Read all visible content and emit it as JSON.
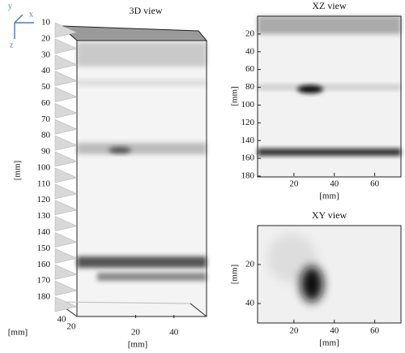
{
  "chart_data": [
    {
      "type": "image3d",
      "title": "3D view",
      "ylabel": "[mm]",
      "xlabel": "[mm]",
      "zlabel": "[mm]",
      "ylim": [
        10,
        180
      ],
      "yticks": [
        10,
        20,
        30,
        40,
        50,
        60,
        70,
        80,
        90,
        100,
        110,
        120,
        130,
        140,
        150,
        160,
        170,
        180
      ],
      "xlim": [
        0,
        57
      ],
      "xticks": [
        20,
        40
      ],
      "zlim": [
        0,
        50
      ],
      "zticks": [
        40,
        20
      ],
      "axis_icon_labels": [
        "y",
        "x",
        "z"
      ]
    },
    {
      "type": "image",
      "title": "XZ view",
      "xlabel": "[mm]",
      "ylabel": "[mm]",
      "xlim": [
        2,
        73
      ],
      "xticks": [
        20,
        40,
        60
      ],
      "ylim": [
        0,
        180
      ],
      "yticks": [
        20,
        40,
        60,
        80,
        100,
        120,
        140,
        160,
        180
      ]
    },
    {
      "type": "image",
      "title": "XY view",
      "xlabel": "[mm]",
      "ylabel": "[mm]",
      "xlim": [
        2,
        73
      ],
      "xticks": [
        20,
        40,
        60
      ],
      "ylim": [
        0,
        50
      ],
      "yticks": [
        20,
        40
      ]
    }
  ]
}
